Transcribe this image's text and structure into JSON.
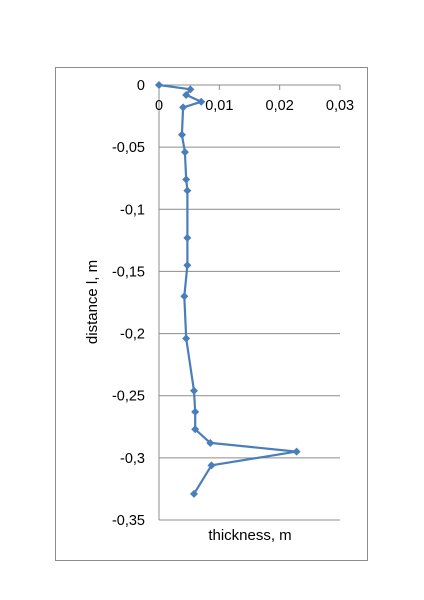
{
  "chart_data": {
    "type": "line",
    "xlabel": "thickness, m",
    "ylabel": "distance l, m",
    "xlim": [
      0,
      0.03
    ],
    "ylim": [
      -0.35,
      0
    ],
    "x_ticks": [
      0,
      0.01,
      0.02,
      0.03
    ],
    "x_tick_labels": [
      "0",
      "0,01",
      "0,02",
      "0,03"
    ],
    "y_ticks": [
      0,
      -0.05,
      -0.1,
      -0.15,
      -0.2,
      -0.25,
      -0.3,
      -0.35
    ],
    "y_tick_labels": [
      "0",
      "-0,05",
      "-0,1",
      "-0,15",
      "-0,2",
      "-0,25",
      "-0,3",
      "-0,35"
    ],
    "x_axis_position": "top",
    "grid": "horizontal",
    "series": [
      {
        "color": "#4a7ebb",
        "marker": "diamond",
        "points": [
          {
            "x": 0.0,
            "y": 0.0
          },
          {
            "x": 0.0052,
            "y": -0.0035
          },
          {
            "x": 0.0045,
            "y": -0.008
          },
          {
            "x": 0.007,
            "y": -0.0135
          },
          {
            "x": 0.004,
            "y": -0.018
          },
          {
            "x": 0.0038,
            "y": -0.04
          },
          {
            "x": 0.0043,
            "y": -0.054
          },
          {
            "x": 0.0045,
            "y": -0.076
          },
          {
            "x": 0.0047,
            "y": -0.085
          },
          {
            "x": 0.0047,
            "y": -0.123
          },
          {
            "x": 0.0047,
            "y": -0.145
          },
          {
            "x": 0.0042,
            "y": -0.17
          },
          {
            "x": 0.0045,
            "y": -0.204
          },
          {
            "x": 0.0058,
            "y": -0.246
          },
          {
            "x": 0.006,
            "y": -0.263
          },
          {
            "x": 0.006,
            "y": -0.277
          },
          {
            "x": 0.0085,
            "y": -0.288
          },
          {
            "x": 0.0228,
            "y": -0.295
          },
          {
            "x": 0.0087,
            "y": -0.306
          },
          {
            "x": 0.0058,
            "y": -0.329
          }
        ]
      }
    ]
  }
}
